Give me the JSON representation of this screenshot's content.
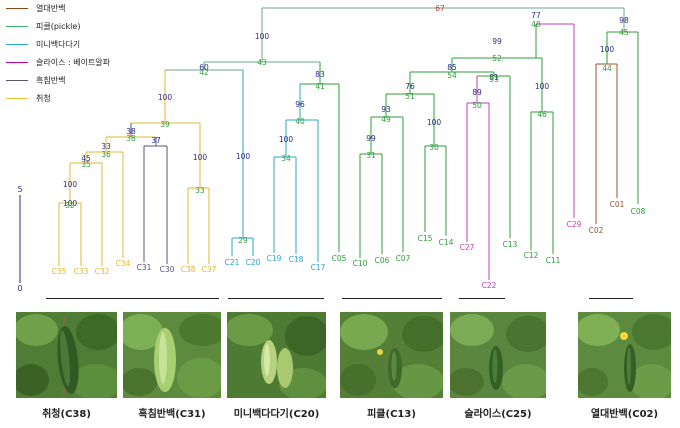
{
  "legend": [
    {
      "label": "열대반백",
      "color": "#8B4513"
    },
    {
      "label": "피클(pickle)",
      "color": "#3CB371"
    },
    {
      "label": "미니백다다기",
      "color": "#2AA7C9"
    },
    {
      "label": "슬라이스 : 베이트알파",
      "color": "#C000C0"
    },
    {
      "label": "흑침반백",
      "color": "#55557A"
    },
    {
      "label": "취청",
      "color": "#E8C23A"
    }
  ],
  "scale": {
    "top_label": "5",
    "bottom_label": "0"
  },
  "leaves": [
    {
      "id": "C35",
      "color": "#E0B830"
    },
    {
      "id": "C33",
      "color": "#E0B830"
    },
    {
      "id": "C32",
      "color": "#E0B830"
    },
    {
      "id": "C34",
      "color": "#E0B830"
    },
    {
      "id": "C31",
      "color": "#55557A"
    },
    {
      "id": "C30",
      "color": "#55557A"
    },
    {
      "id": "C38",
      "color": "#E0B830"
    },
    {
      "id": "C37",
      "color": "#E0B830"
    },
    {
      "id": "C21",
      "color": "#2AA7C9"
    },
    {
      "id": "C20",
      "color": "#2AA7C9"
    },
    {
      "id": "C19",
      "color": "#2AA7C9"
    },
    {
      "id": "C18",
      "color": "#2AA7C9"
    },
    {
      "id": "C17",
      "color": "#2AA7C9"
    },
    {
      "id": "C05",
      "color": "#2E9E3A"
    },
    {
      "id": "C10",
      "color": "#2E9E3A"
    },
    {
      "id": "C06",
      "color": "#2E9E3A"
    },
    {
      "id": "C07",
      "color": "#2E9E3A"
    },
    {
      "id": "C15",
      "color": "#2E9E3A"
    },
    {
      "id": "C14",
      "color": "#2E9E3A"
    },
    {
      "id": "C27",
      "color": "#C040C0"
    },
    {
      "id": "C22",
      "color": "#C040C0"
    },
    {
      "id": "C13",
      "color": "#2E9E3A"
    },
    {
      "id": "C12",
      "color": "#2E9E3A"
    },
    {
      "id": "C11",
      "color": "#2E9E3A"
    },
    {
      "id": "C29",
      "color": "#C040C0"
    },
    {
      "id": "C02",
      "color": "#A0522D"
    },
    {
      "id": "C01",
      "color": "#A0522D"
    },
    {
      "id": "C08",
      "color": "#2E9E3A"
    }
  ],
  "support_values": [
    {
      "value": "67",
      "color": "#C0392B"
    },
    {
      "value": "77",
      "color": "#2B2B8C"
    },
    {
      "value": "98",
      "color": "#2B2B8C"
    },
    {
      "value": "48",
      "color": "#2E9E3A"
    },
    {
      "value": "45",
      "color": "#2E9E3A"
    },
    {
      "value": "100",
      "color": "#2B2B8C"
    },
    {
      "value": "99",
      "color": "#2B2B8C"
    },
    {
      "value": "100",
      "color": "#2B2B8C"
    },
    {
      "value": "43",
      "color": "#2E9E3A"
    },
    {
      "value": "52",
      "color": "#2E9E3A"
    },
    {
      "value": "44",
      "color": "#2E9E3A"
    },
    {
      "value": "60",
      "color": "#2B2B8C"
    },
    {
      "value": "42",
      "color": "#2E9E3A"
    },
    {
      "value": "83",
      "color": "#2B2B8C"
    },
    {
      "value": "41",
      "color": "#2E9E3A"
    },
    {
      "value": "85",
      "color": "#2B2B8C"
    },
    {
      "value": "54",
      "color": "#2E9E3A"
    },
    {
      "value": "81",
      "color": "#2B2B8C"
    },
    {
      "value": "53",
      "color": "#2E9E3A"
    },
    {
      "value": "76",
      "color": "#2B2B8C"
    },
    {
      "value": "51",
      "color": "#2E9E3A"
    },
    {
      "value": "89",
      "color": "#2B2B8C"
    },
    {
      "value": "50",
      "color": "#2E9E3A"
    },
    {
      "value": "100",
      "color": "#2B2B8C"
    },
    {
      "value": "96",
      "color": "#2B2B8C"
    },
    {
      "value": "40",
      "color": "#2E9E3A"
    },
    {
      "value": "93",
      "color": "#2B2B8C"
    },
    {
      "value": "49",
      "color": "#2E9E3A"
    },
    {
      "value": "100",
      "color": "#2B2B8C"
    },
    {
      "value": "46",
      "color": "#2E9E3A"
    },
    {
      "value": "39",
      "color": "#2E9E3A"
    },
    {
      "value": "38",
      "color": "#2B2B8C"
    },
    {
      "value": "38",
      "color": "#2E9E3A"
    },
    {
      "value": "37",
      "color": "#2B2B8C"
    },
    {
      "value": "33",
      "color": "#2B2B8C"
    },
    {
      "value": "36",
      "color": "#2E9E3A"
    },
    {
      "value": "45",
      "color": "#2B2B8C"
    },
    {
      "value": "35",
      "color": "#2E9E3A"
    },
    {
      "value": "100",
      "color": "#2B2B8C"
    },
    {
      "value": "100",
      "color": "#2B2B8C"
    },
    {
      "value": "100",
      "color": "#2B2B8C"
    },
    {
      "value": "34",
      "color": "#2E9E3A"
    },
    {
      "value": "99",
      "color": "#2B2B8C"
    },
    {
      "value": "31",
      "color": "#2E9E3A"
    },
    {
      "value": "100",
      "color": "#2B2B8C"
    },
    {
      "value": "30",
      "color": "#2E9E3A"
    },
    {
      "value": "100",
      "color": "#2B2B8C"
    },
    {
      "value": "33",
      "color": "#2E9E3A"
    },
    {
      "value": "100",
      "color": "#2B2B8C"
    },
    {
      "value": "32",
      "color": "#2E9E3A"
    },
    {
      "value": "29",
      "color": "#2E9E3A"
    }
  ],
  "photos": [
    {
      "caption": "취청(C38)",
      "icon": "cucumber-photo"
    },
    {
      "caption": "흑침반백(C31)",
      "icon": "cucumber-photo"
    },
    {
      "caption": "미니백다다기(C20)",
      "icon": "cucumber-photo"
    },
    {
      "caption": "피클(C13)",
      "icon": "cucumber-photo"
    },
    {
      "caption": "슬라이스(C25)",
      "icon": "cucumber-photo"
    },
    {
      "caption": "열대반백(C02)",
      "icon": "cucumber-photo"
    }
  ]
}
